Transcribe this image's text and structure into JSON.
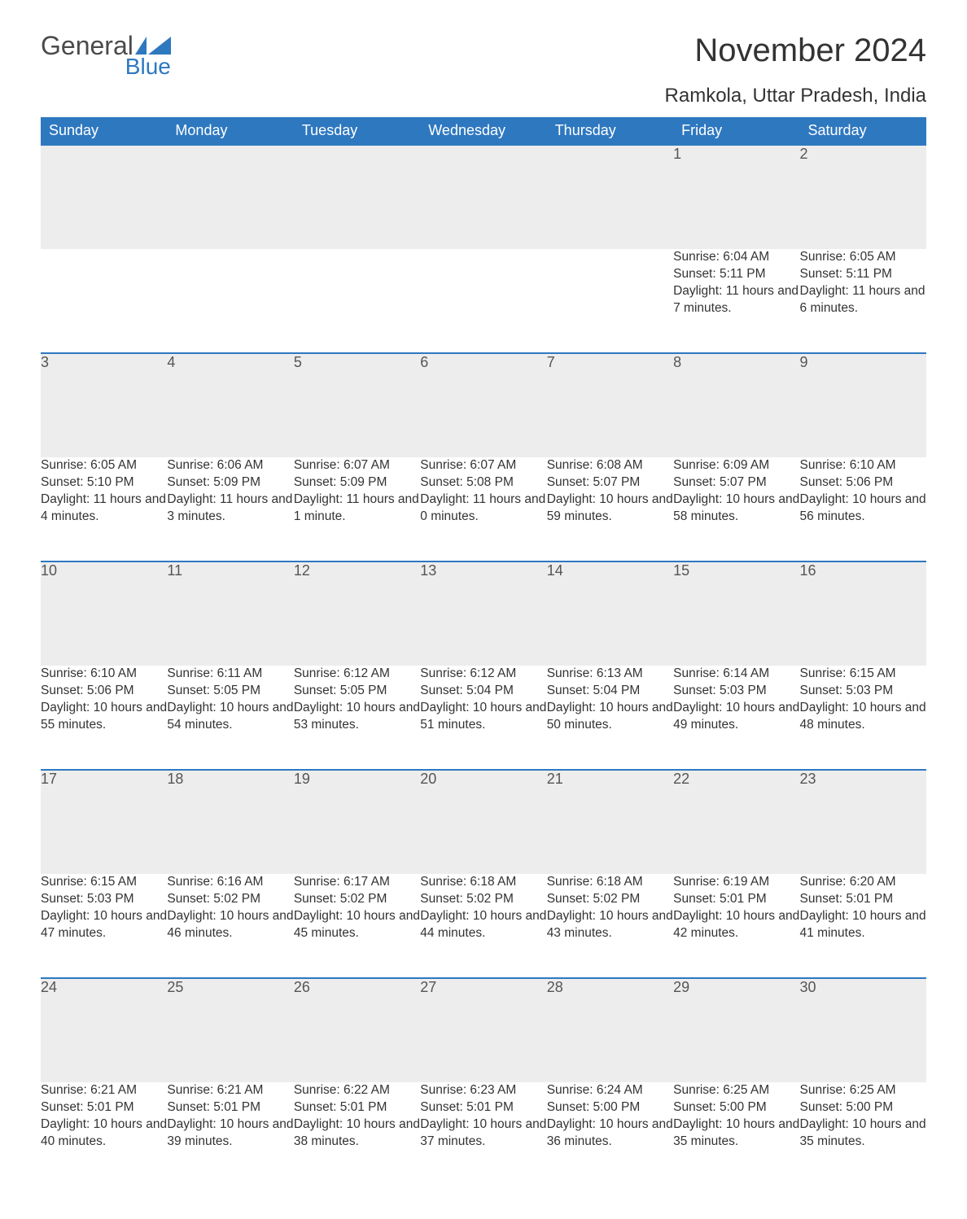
{
  "brand": {
    "word1": "General",
    "word2": "Blue",
    "flag_color": "#2e78c0"
  },
  "title": "November 2024",
  "location": "Ramkola, Uttar Pradesh, India",
  "colors": {
    "header_bg": "#2e78c0",
    "header_fg": "#ffffff",
    "daynum_bg": "#ededed",
    "row_border": "#2e78c0",
    "text": "#333333"
  },
  "font": {
    "family": "Arial",
    "title_size_pt": 30,
    "header_size_pt": 14,
    "body_size_pt": 11.5
  },
  "layout": {
    "columns": 7,
    "rows": 5,
    "first_day_column_index": 5
  },
  "day_labels": [
    "Sunday",
    "Monday",
    "Tuesday",
    "Wednesday",
    "Thursday",
    "Friday",
    "Saturday"
  ],
  "weeks": [
    [
      null,
      null,
      null,
      null,
      null,
      {
        "n": "1",
        "sunrise": "6:04 AM",
        "sunset": "5:11 PM",
        "daylight": "11 hours and 7 minutes."
      },
      {
        "n": "2",
        "sunrise": "6:05 AM",
        "sunset": "5:11 PM",
        "daylight": "11 hours and 6 minutes."
      }
    ],
    [
      {
        "n": "3",
        "sunrise": "6:05 AM",
        "sunset": "5:10 PM",
        "daylight": "11 hours and 4 minutes."
      },
      {
        "n": "4",
        "sunrise": "6:06 AM",
        "sunset": "5:09 PM",
        "daylight": "11 hours and 3 minutes."
      },
      {
        "n": "5",
        "sunrise": "6:07 AM",
        "sunset": "5:09 PM",
        "daylight": "11 hours and 1 minute."
      },
      {
        "n": "6",
        "sunrise": "6:07 AM",
        "sunset": "5:08 PM",
        "daylight": "11 hours and 0 minutes."
      },
      {
        "n": "7",
        "sunrise": "6:08 AM",
        "sunset": "5:07 PM",
        "daylight": "10 hours and 59 minutes."
      },
      {
        "n": "8",
        "sunrise": "6:09 AM",
        "sunset": "5:07 PM",
        "daylight": "10 hours and 58 minutes."
      },
      {
        "n": "9",
        "sunrise": "6:10 AM",
        "sunset": "5:06 PM",
        "daylight": "10 hours and 56 minutes."
      }
    ],
    [
      {
        "n": "10",
        "sunrise": "6:10 AM",
        "sunset": "5:06 PM",
        "daylight": "10 hours and 55 minutes."
      },
      {
        "n": "11",
        "sunrise": "6:11 AM",
        "sunset": "5:05 PM",
        "daylight": "10 hours and 54 minutes."
      },
      {
        "n": "12",
        "sunrise": "6:12 AM",
        "sunset": "5:05 PM",
        "daylight": "10 hours and 53 minutes."
      },
      {
        "n": "13",
        "sunrise": "6:12 AM",
        "sunset": "5:04 PM",
        "daylight": "10 hours and 51 minutes."
      },
      {
        "n": "14",
        "sunrise": "6:13 AM",
        "sunset": "5:04 PM",
        "daylight": "10 hours and 50 minutes."
      },
      {
        "n": "15",
        "sunrise": "6:14 AM",
        "sunset": "5:03 PM",
        "daylight": "10 hours and 49 minutes."
      },
      {
        "n": "16",
        "sunrise": "6:15 AM",
        "sunset": "5:03 PM",
        "daylight": "10 hours and 48 minutes."
      }
    ],
    [
      {
        "n": "17",
        "sunrise": "6:15 AM",
        "sunset": "5:03 PM",
        "daylight": "10 hours and 47 minutes."
      },
      {
        "n": "18",
        "sunrise": "6:16 AM",
        "sunset": "5:02 PM",
        "daylight": "10 hours and 46 minutes."
      },
      {
        "n": "19",
        "sunrise": "6:17 AM",
        "sunset": "5:02 PM",
        "daylight": "10 hours and 45 minutes."
      },
      {
        "n": "20",
        "sunrise": "6:18 AM",
        "sunset": "5:02 PM",
        "daylight": "10 hours and 44 minutes."
      },
      {
        "n": "21",
        "sunrise": "6:18 AM",
        "sunset": "5:02 PM",
        "daylight": "10 hours and 43 minutes."
      },
      {
        "n": "22",
        "sunrise": "6:19 AM",
        "sunset": "5:01 PM",
        "daylight": "10 hours and 42 minutes."
      },
      {
        "n": "23",
        "sunrise": "6:20 AM",
        "sunset": "5:01 PM",
        "daylight": "10 hours and 41 minutes."
      }
    ],
    [
      {
        "n": "24",
        "sunrise": "6:21 AM",
        "sunset": "5:01 PM",
        "daylight": "10 hours and 40 minutes."
      },
      {
        "n": "25",
        "sunrise": "6:21 AM",
        "sunset": "5:01 PM",
        "daylight": "10 hours and 39 minutes."
      },
      {
        "n": "26",
        "sunrise": "6:22 AM",
        "sunset": "5:01 PM",
        "daylight": "10 hours and 38 minutes."
      },
      {
        "n": "27",
        "sunrise": "6:23 AM",
        "sunset": "5:01 PM",
        "daylight": "10 hours and 37 minutes."
      },
      {
        "n": "28",
        "sunrise": "6:24 AM",
        "sunset": "5:00 PM",
        "daylight": "10 hours and 36 minutes."
      },
      {
        "n": "29",
        "sunrise": "6:25 AM",
        "sunset": "5:00 PM",
        "daylight": "10 hours and 35 minutes."
      },
      {
        "n": "30",
        "sunrise": "6:25 AM",
        "sunset": "5:00 PM",
        "daylight": "10 hours and 35 minutes."
      }
    ]
  ],
  "field_labels": {
    "sunrise": "Sunrise: ",
    "sunset": "Sunset: ",
    "daylight": "Daylight: "
  }
}
